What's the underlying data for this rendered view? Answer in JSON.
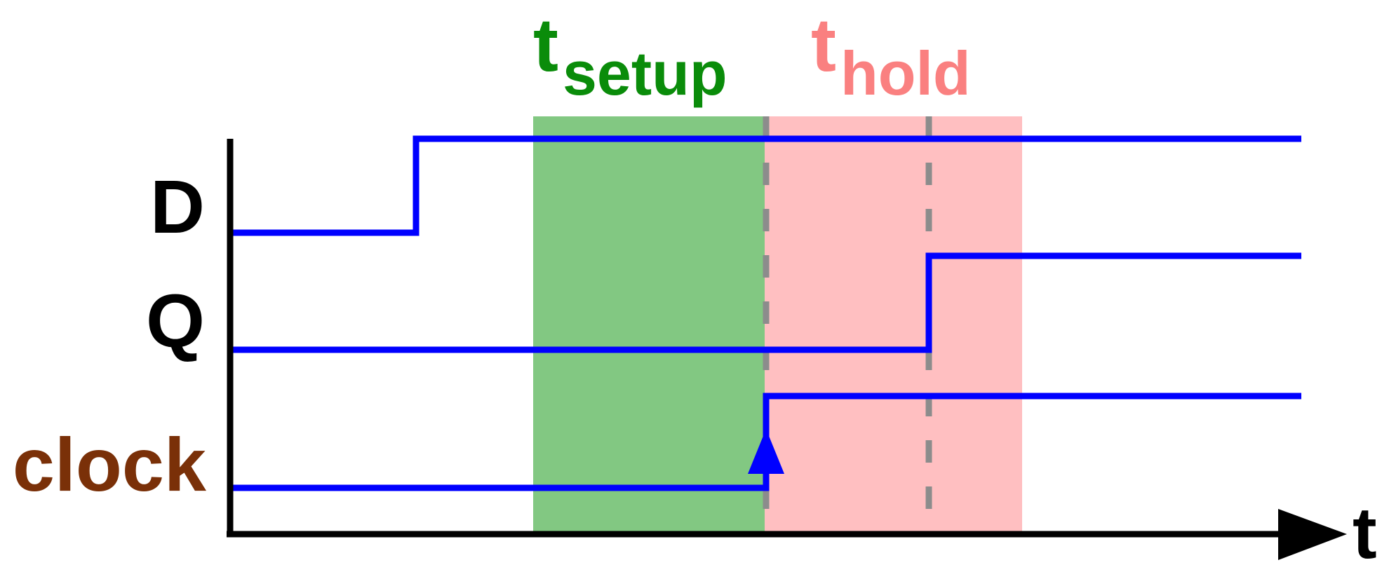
{
  "signals": {
    "d": {
      "label": "D",
      "color": "#000000"
    },
    "q": {
      "label": "Q",
      "color": "#000000"
    },
    "clock": {
      "label": "clock",
      "color": "#7a3008"
    }
  },
  "setup": {
    "t": "t",
    "sub": "setup",
    "color": "#0a8c0a",
    "fill": "#82c882"
  },
  "hold": {
    "t": "t",
    "sub": "hold",
    "color": "#fa8080",
    "fill": "#ffbfc1"
  },
  "axis": {
    "time_label": "t"
  },
  "colors": {
    "waveform": "#0000ff",
    "axis": "#000000",
    "dashes": "#8c8c8c"
  }
}
